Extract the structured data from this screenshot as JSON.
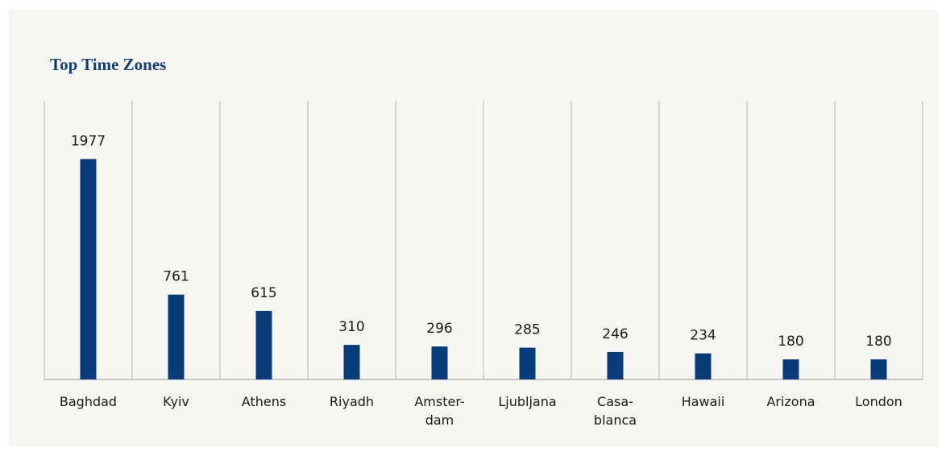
{
  "chart_data": {
    "type": "bar",
    "title": "Top Time Zones",
    "categories": [
      "Baghdad",
      "Kyiv",
      "Athens",
      "Riyadh",
      "Amster-\ndam",
      "Ljubljana",
      "Casa-\nblanca",
      "Hawaii",
      "Arizona",
      "London"
    ],
    "values": [
      1977,
      761,
      615,
      310,
      296,
      285,
      246,
      234,
      180,
      180
    ],
    "color": "#073b79",
    "ylim": [
      0,
      2500
    ]
  }
}
